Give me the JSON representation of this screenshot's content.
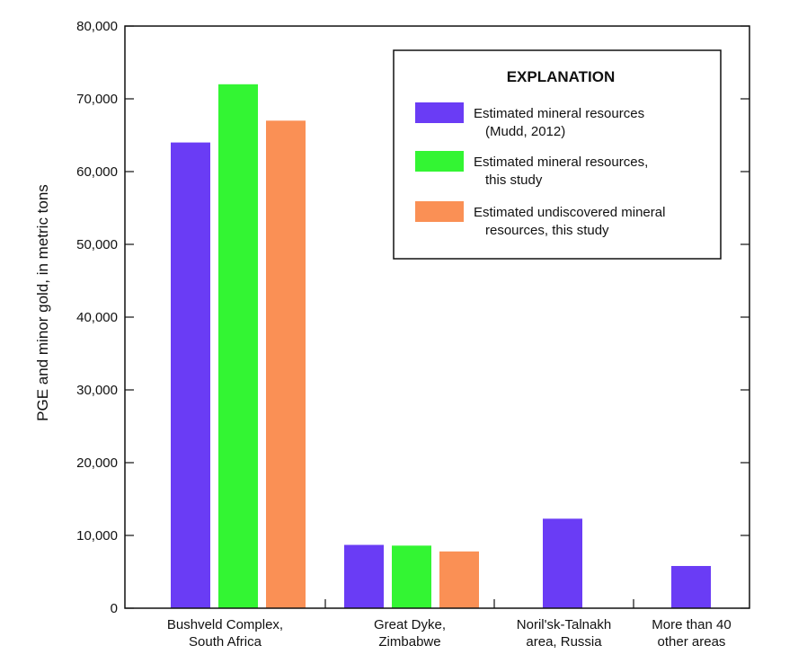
{
  "chart_data": {
    "type": "bar",
    "title": "",
    "xlabel": "",
    "ylabel": "PGE and minor gold, in metric tons",
    "ylim": [
      0,
      80000
    ],
    "yticks": [
      0,
      10000,
      20000,
      30000,
      40000,
      50000,
      60000,
      70000,
      80000
    ],
    "ytick_labels": [
      "0",
      "10,000",
      "20,000",
      "30,000",
      "40,000",
      "50,000",
      "60,000",
      "70,000",
      "80,000"
    ],
    "grid": false,
    "legend_position": "top-right",
    "legend_title": "EXPLANATION",
    "categories": [
      {
        "lines": [
          "Bushveld Complex,",
          "South Africa"
        ]
      },
      {
        "lines": [
          "Great Dyke,",
          "Zimbabwe"
        ]
      },
      {
        "lines": [
          "Noril'sk-Talnakh",
          "area, Russia"
        ]
      },
      {
        "lines": [
          "More than 40",
          "other areas"
        ]
      }
    ],
    "series": [
      {
        "name_lines": [
          "Estimated mineral resources",
          "(Mudd, 2012)"
        ],
        "color": "#6a3cf5",
        "values": [
          64000,
          8700,
          12300,
          5800
        ]
      },
      {
        "name_lines": [
          "Estimated mineral resources,",
          "this study"
        ],
        "color": "#33f533",
        "values": [
          72000,
          8600,
          null,
          null
        ]
      },
      {
        "name_lines": [
          "Estimated undiscovered mineral",
          "resources, this study"
        ],
        "color": "#fa9055",
        "values": [
          67000,
          7800,
          null,
          null
        ]
      }
    ]
  }
}
